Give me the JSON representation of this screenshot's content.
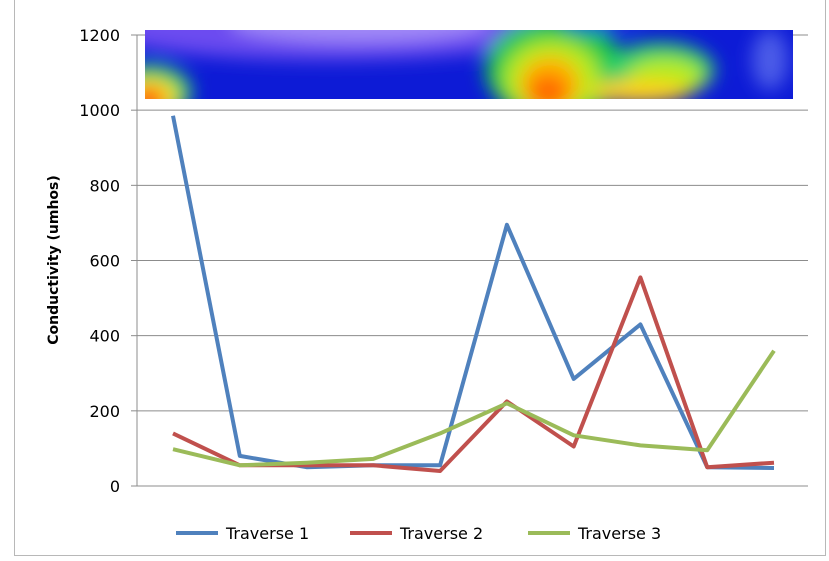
{
  "chart_data": {
    "type": "line",
    "title": "",
    "xlabel": "",
    "ylabel": "Conductivity (umhos)",
    "ylim": [
      0,
      1200
    ],
    "yticks": [
      0,
      200,
      400,
      600,
      800,
      1000,
      1200
    ],
    "grid": true,
    "legend_position": "bottom",
    "x": [
      1,
      2,
      3,
      4,
      5,
      6,
      7,
      8,
      9,
      10
    ],
    "series": [
      {
        "name": "Traverse 1",
        "color": "#4f81bd",
        "values": [
          985,
          80,
          50,
          55,
          55,
          695,
          285,
          430,
          50,
          48
        ]
      },
      {
        "name": "Traverse 2",
        "color": "#c0504d",
        "values": [
          140,
          55,
          55,
          55,
          40,
          225,
          105,
          555,
          50,
          62
        ]
      },
      {
        "name": "Traverse 3",
        "color": "#9bbb59",
        "values": [
          98,
          55,
          62,
          72,
          140,
          220,
          135,
          108,
          95,
          360
        ]
      }
    ],
    "inset_image": "conductivity-heatmap-strip"
  }
}
